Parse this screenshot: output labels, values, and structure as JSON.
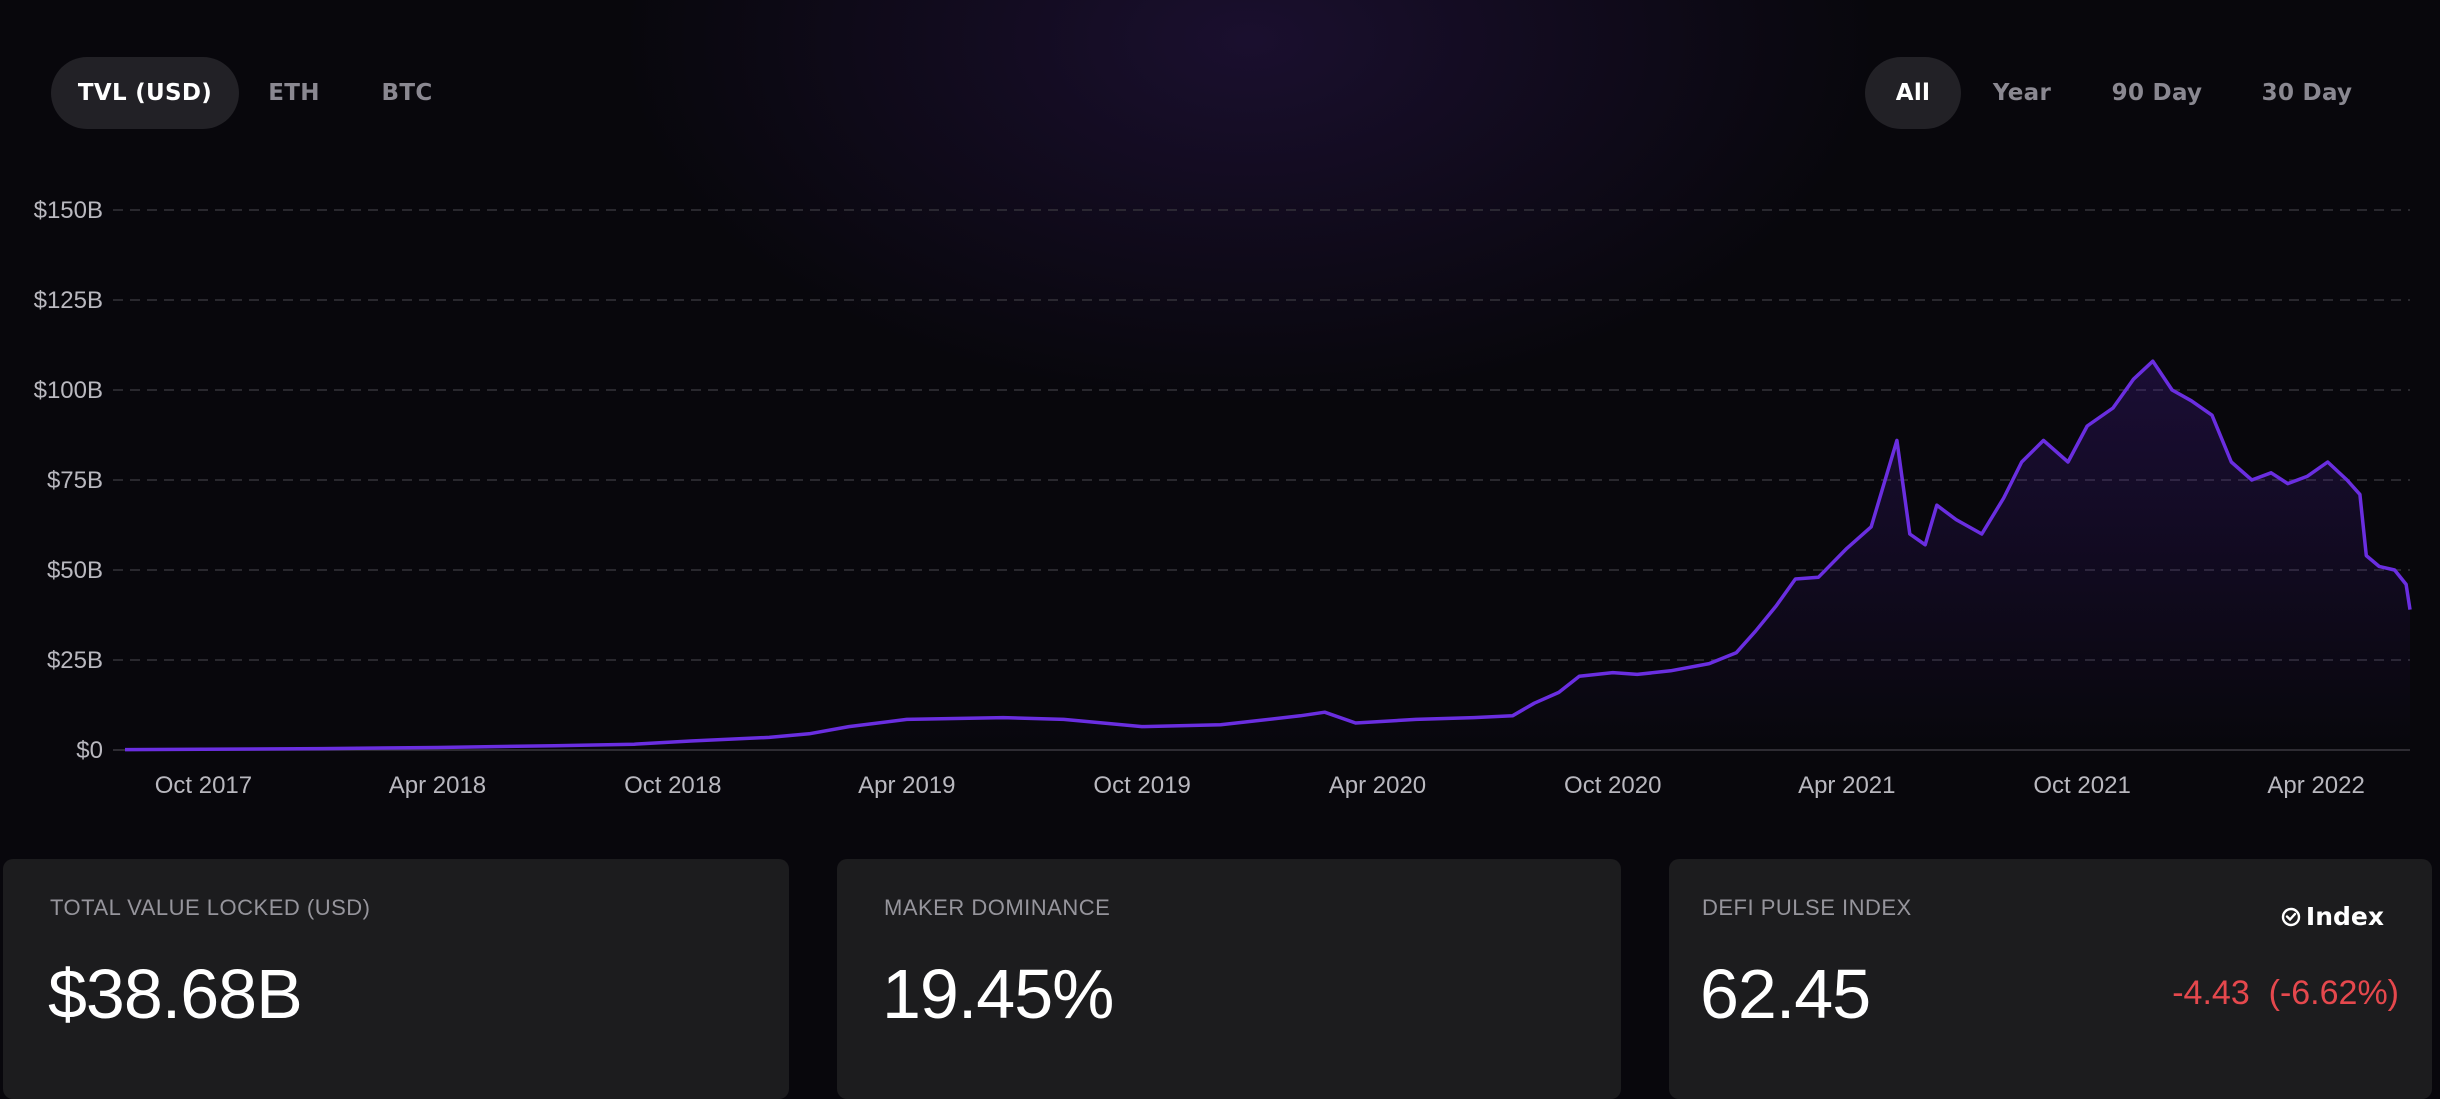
{
  "tabs_left": [
    {
      "label": "TVL (USD)",
      "active": true
    },
    {
      "label": "ETH",
      "active": false
    },
    {
      "label": "BTC",
      "active": false
    }
  ],
  "tabs_right": [
    {
      "label": "All",
      "active": true
    },
    {
      "label": "Year",
      "active": false
    },
    {
      "label": "90 Day",
      "active": false
    },
    {
      "label": "30 Day",
      "active": false
    }
  ],
  "chart_data": {
    "type": "line",
    "title": "",
    "xlabel": "",
    "ylabel": "",
    "ylim": [
      0,
      150
    ],
    "y_unit": "billions USD",
    "y_ticks": [
      0,
      25,
      50,
      75,
      100,
      125,
      150
    ],
    "y_tick_labels": [
      "$0",
      "$25B",
      "$50B",
      "$75B",
      "$100B",
      "$125B",
      "$150B"
    ],
    "x_tick_labels": [
      "Oct 2017",
      "Apr 2018",
      "Oct 2018",
      "Apr 2019",
      "Oct 2019",
      "Apr 2020",
      "Oct 2020",
      "Apr 2021",
      "Oct 2021",
      "Apr 2022"
    ],
    "x_tick_dates": [
      "2017-10-01",
      "2018-04-01",
      "2018-10-01",
      "2019-04-01",
      "2019-10-01",
      "2020-04-01",
      "2020-10-01",
      "2021-04-01",
      "2021-10-01",
      "2022-04-01"
    ],
    "x_range": [
      "2017-08-01",
      "2022-06-13"
    ],
    "grid": true,
    "line_color": "#6a2ee0",
    "series": [
      {
        "x": [
          "2017-08-01",
          "2017-10-01",
          "2018-01-01",
          "2018-04-01",
          "2018-07-01",
          "2018-09-01",
          "2018-10-15",
          "2018-12-15",
          "2019-01-15",
          "2019-02-15",
          "2019-04-01",
          "2019-06-15",
          "2019-08-01",
          "2019-10-01",
          "2019-12-01",
          "2020-02-01",
          "2020-02-20",
          "2020-03-15",
          "2020-05-01",
          "2020-06-15",
          "2020-07-15",
          "2020-08-01",
          "2020-08-20",
          "2020-09-05",
          "2020-10-01",
          "2020-10-20",
          "2020-11-15",
          "2020-12-15",
          "2021-01-05",
          "2021-01-20",
          "2021-02-05",
          "2021-02-20",
          "2021-03-10",
          "2021-04-01",
          "2021-04-20",
          "2021-05-10",
          "2021-05-20",
          "2021-06-01",
          "2021-06-10",
          "2021-06-25",
          "2021-07-15",
          "2021-08-01",
          "2021-08-15",
          "2021-09-01",
          "2021-09-20",
          "2021-10-05",
          "2021-10-25",
          "2021-11-10",
          "2021-11-25",
          "2021-12-10",
          "2021-12-25",
          "2022-01-10",
          "2022-01-25",
          "2022-02-10",
          "2022-02-25",
          "2022-03-10",
          "2022-03-25",
          "2022-04-10",
          "2022-04-25",
          "2022-05-05",
          "2022-05-10",
          "2022-05-20",
          "2022-06-01",
          "2022-06-10",
          "2022-06-13"
        ],
        "values": [
          0.1,
          0.2,
          0.4,
          0.7,
          1.2,
          1.6,
          2.5,
          3.5,
          4.5,
          6.5,
          8.5,
          9.0,
          8.5,
          6.5,
          7.0,
          9.5,
          10.5,
          7.5,
          8.5,
          9.0,
          9.5,
          13.0,
          16.0,
          20.5,
          21.5,
          21.0,
          22.0,
          24.0,
          27.0,
          33.0,
          40.0,
          47.5,
          48.0,
          56.0,
          62.0,
          86.0,
          60.0,
          57.0,
          68.0,
          64.0,
          60.0,
          70.0,
          80.0,
          86.0,
          80.0,
          90.0,
          95.0,
          103.0,
          108.0,
          100.0,
          97.0,
          93.0,
          80.0,
          75.0,
          77.0,
          74.0,
          76.0,
          80.0,
          75.0,
          71.0,
          54.0,
          51.0,
          50.0,
          46.0,
          39.0
        ]
      }
    ]
  },
  "cards": [
    {
      "title": "TOTAL VALUE LOCKED (USD)",
      "value": "$38.68B"
    },
    {
      "title": "MAKER DOMINANCE",
      "value": "19.45%"
    },
    {
      "title": "DEFI PULSE INDEX",
      "value": "62.45",
      "badge": "Index",
      "change": "-4.43  (-6.62%)",
      "change_color": "#e5484d"
    }
  ]
}
